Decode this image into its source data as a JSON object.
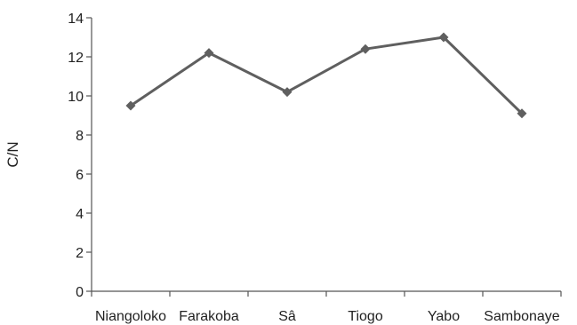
{
  "chart_data": {
    "type": "line",
    "title": "",
    "xlabel": "",
    "ylabel": "C/N",
    "categories": [
      "Niangoloko",
      "Farakoba",
      "Sâ",
      "Tiogo",
      "Yabo",
      "Sambonaye"
    ],
    "series": [
      {
        "values": [
          9.5,
          12.2,
          10.2,
          12.4,
          13.0,
          9.1
        ]
      }
    ],
    "ylim": [
      0,
      14
    ],
    "yticks": [
      0,
      2,
      4,
      6,
      8,
      10,
      12,
      14
    ],
    "grid": false,
    "legend": "none",
    "marker": "diamond",
    "line_color": "#5f5f5f"
  }
}
